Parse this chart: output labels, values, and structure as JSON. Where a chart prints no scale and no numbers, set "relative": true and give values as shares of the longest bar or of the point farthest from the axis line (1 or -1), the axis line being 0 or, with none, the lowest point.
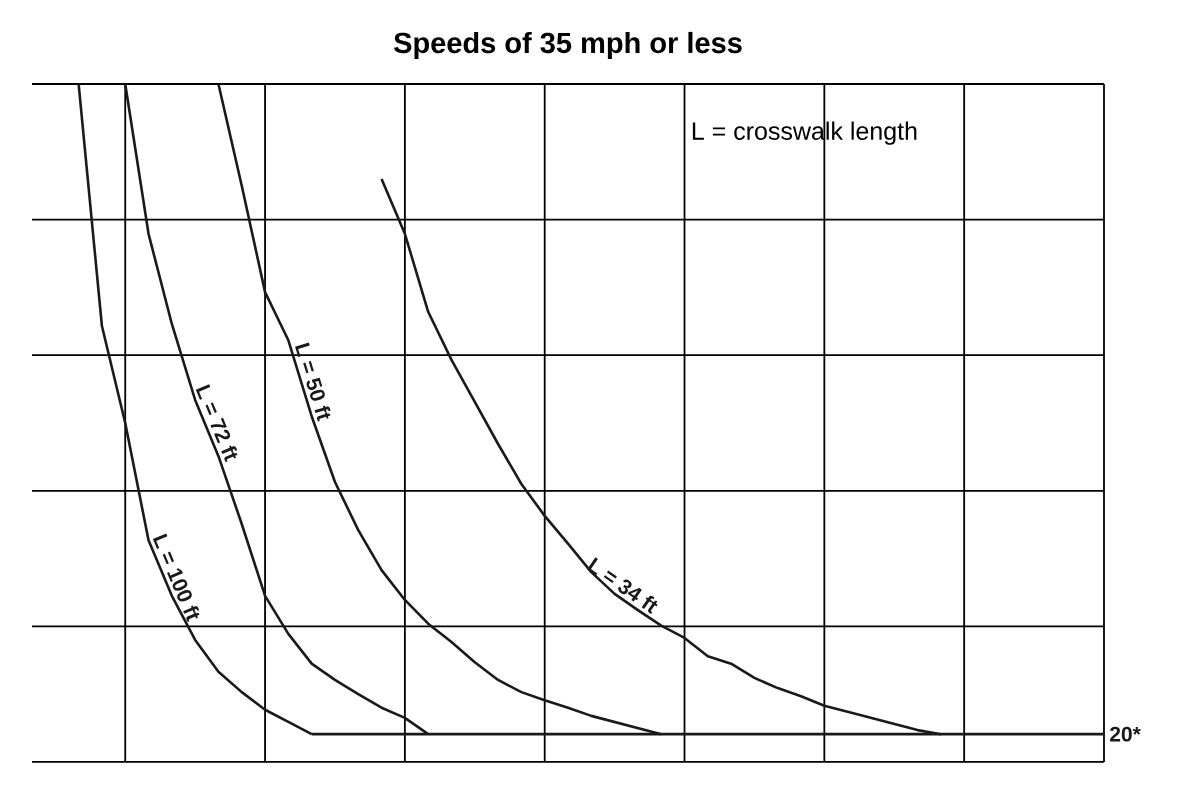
{
  "chart_data": {
    "type": "line",
    "title": "Speeds of 35 mph or less",
    "relative": true,
    "grid": true,
    "annotations": [
      "L = crosswalk length"
    ],
    "categories": [
      null,
      null,
      null,
      null,
      null,
      null,
      null,
      null,
      null,
      null,
      null,
      null,
      null,
      null,
      null,
      null,
      null,
      null,
      null,
      null,
      null,
      null,
      null,
      null,
      null,
      null,
      null,
      null,
      null,
      null,
      null,
      null,
      null,
      null,
      null,
      null,
      null,
      null,
      null,
      null,
      null,
      null,
      null,
      null,
      null,
      null,
      null
    ],
    "series": [
      {
        "name": "L = 100 ft",
        "color": "#1a1a1a",
        "values": [
          null,
          null,
          1.0,
          0.643,
          0.5,
          0.327,
          0.245,
          0.18,
          0.133,
          0.103,
          0.077,
          0.059,
          0.041,
          null,
          null,
          null,
          null,
          null,
          null,
          null,
          null,
          null,
          null,
          null,
          null,
          null,
          null,
          null,
          null,
          null,
          null,
          null,
          null,
          null,
          null,
          null,
          null,
          null,
          null,
          null,
          null,
          null,
          null,
          null,
          null,
          null,
          null
        ]
      },
      {
        "name": "L = 72 ft",
        "color": "#1a1a1a",
        "values": [
          null,
          null,
          null,
          null,
          1.0,
          0.779,
          0.646,
          0.534,
          0.451,
          0.351,
          0.245,
          0.189,
          0.145,
          0.121,
          0.1,
          0.08,
          0.065,
          0.041,
          null,
          null,
          null,
          null,
          null,
          null,
          null,
          null,
          null,
          null,
          null,
          null,
          null,
          null,
          null,
          null,
          null,
          null,
          null,
          null,
          null,
          null,
          null,
          null,
          null,
          null,
          null,
          null,
          null
        ]
      },
      {
        "name": "L = 50 ft",
        "color": "#1a1a1a",
        "values": [
          null,
          null,
          null,
          null,
          null,
          null,
          null,
          null,
          1.0,
          0.85,
          0.693,
          0.622,
          0.51,
          0.413,
          0.342,
          0.283,
          0.239,
          0.204,
          0.177,
          0.147,
          0.121,
          0.103,
          0.091,
          0.08,
          0.068,
          0.059,
          0.05,
          0.041,
          null,
          null,
          null,
          null,
          null,
          null,
          null,
          null,
          null,
          null,
          null,
          null,
          null,
          null,
          null,
          null,
          null,
          null,
          null
        ]
      },
      {
        "name": "L = 34 ft",
        "color": "#1a1a1a",
        "values": [
          null,
          null,
          null,
          null,
          null,
          null,
          null,
          null,
          null,
          null,
          null,
          null,
          null,
          null,
          null,
          0.86,
          0.779,
          0.664,
          0.593,
          0.531,
          0.469,
          0.41,
          0.363,
          0.322,
          0.28,
          0.248,
          0.224,
          0.201,
          0.183,
          0.156,
          0.145,
          0.124,
          0.109,
          0.097,
          0.083,
          0.074,
          0.065,
          0.056,
          0.047,
          0.041,
          null,
          null,
          null,
          null,
          null,
          null,
          null
        ]
      },
      {
        "name": "20*",
        "color": "#1a1a1a",
        "values": [
          null,
          null,
          null,
          null,
          null,
          null,
          null,
          null,
          null,
          null,
          null,
          null,
          0.041,
          0.041,
          0.041,
          0.041,
          0.041,
          0.041,
          0.041,
          0.041,
          0.041,
          0.041,
          0.041,
          0.041,
          0.041,
          0.041,
          0.041,
          0.041,
          0.041,
          0.041,
          0.041,
          0.041,
          0.041,
          0.041,
          0.041,
          0.041,
          0.041,
          0.041,
          0.041,
          0.041,
          0.041,
          0.041,
          0.041,
          0.041,
          0.041,
          0.041,
          0.041
        ]
      }
    ]
  }
}
